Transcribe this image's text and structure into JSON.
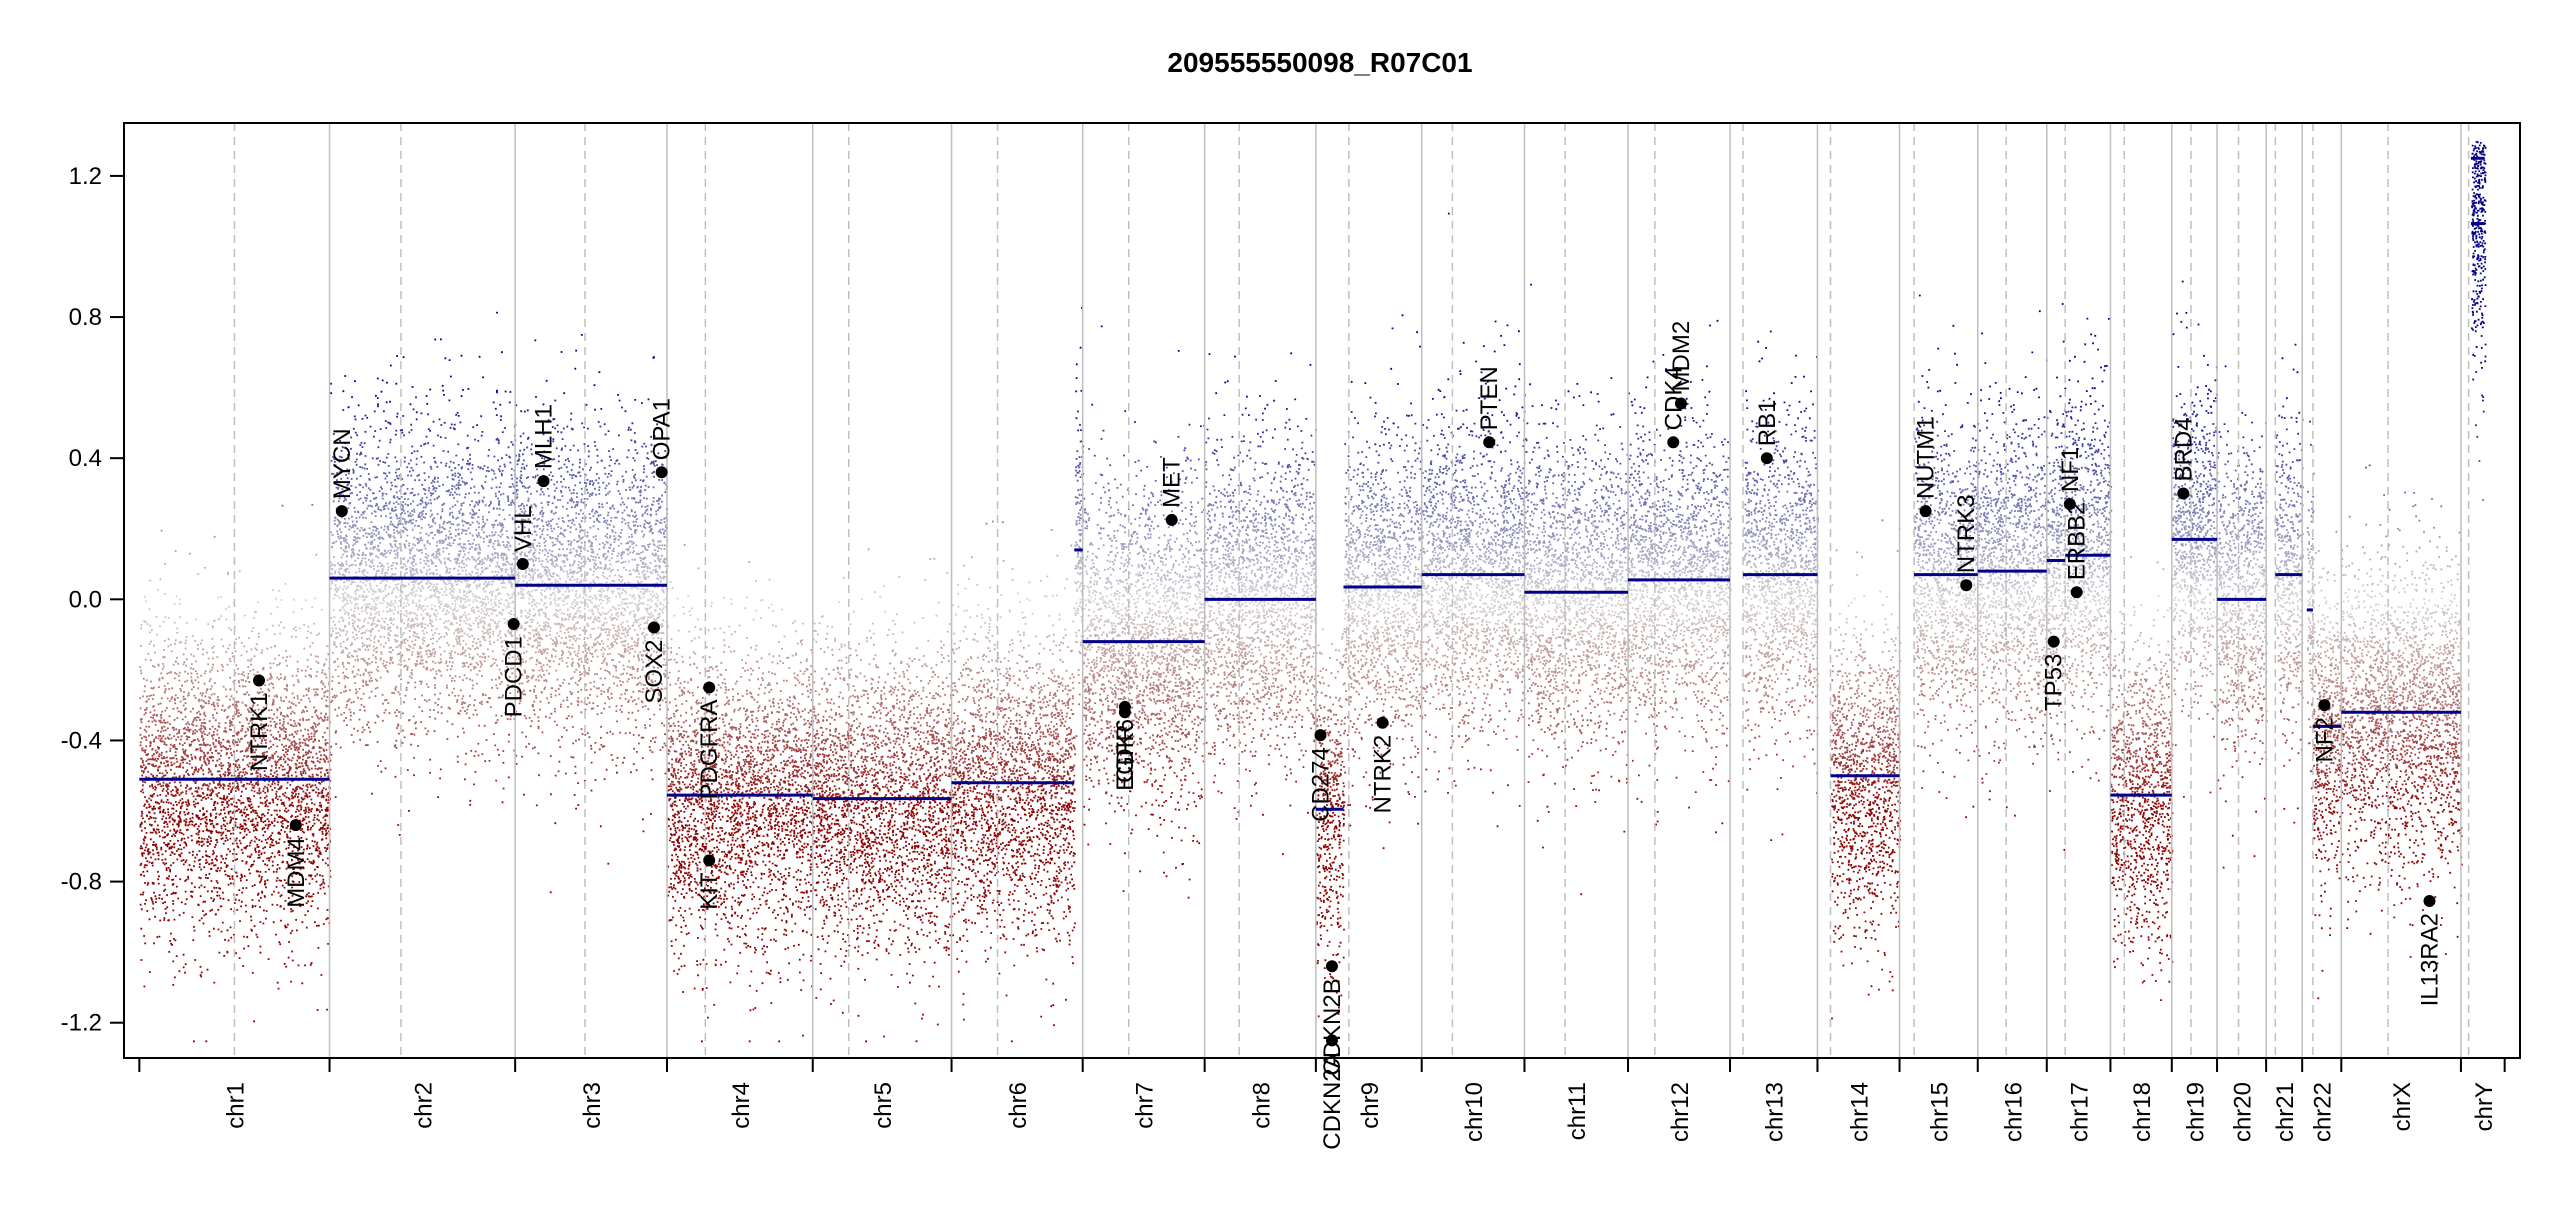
{
  "chart_data": {
    "type": "scatter",
    "title": "209555550098_R07C01",
    "xlabel": "",
    "ylabel": "",
    "ylim": [
      -1.3,
      1.35
    ],
    "yticks": [
      -1.2,
      -0.8,
      -0.4,
      0.0,
      0.4,
      0.8,
      1.2
    ],
    "ytick_labels": [
      "-1.2",
      "-0.8",
      "-0.4",
      "0.0",
      "0.4",
      "0.8",
      "1.2"
    ],
    "grid": false,
    "colors": {
      "gain": "#00008B",
      "loss": "#8B0000",
      "neutral": "#D3D3D3",
      "segment": "#00008B",
      "gene": "#000000",
      "boundary": "#BEBEBE"
    },
    "chromosomes": [
      {
        "name": "chr1",
        "start": 0,
        "end": 248,
        "centromere": 124
      },
      {
        "name": "chr2",
        "start": 248,
        "end": 490,
        "centromere": 341
      },
      {
        "name": "chr3",
        "start": 490,
        "end": 688,
        "centromere": 581
      },
      {
        "name": "chr4",
        "start": 688,
        "end": 878,
        "centromere": 738
      },
      {
        "name": "chr5",
        "start": 878,
        "end": 1059,
        "centromere": 925
      },
      {
        "name": "chr6",
        "start": 1059,
        "end": 1230,
        "centromere": 1119
      },
      {
        "name": "chr7",
        "start": 1230,
        "end": 1389,
        "centromere": 1290
      },
      {
        "name": "chr8",
        "start": 1389,
        "end": 1534,
        "centromere": 1434
      },
      {
        "name": "chr9",
        "start": 1534,
        "end": 1672,
        "centromere": 1577
      },
      {
        "name": "chr10",
        "start": 1672,
        "end": 1806,
        "centromere": 1712
      },
      {
        "name": "chr11",
        "start": 1806,
        "end": 1941,
        "centromere": 1859
      },
      {
        "name": "chr12",
        "start": 1941,
        "end": 2074,
        "centromere": 1976
      },
      {
        "name": "chr13",
        "start": 2074,
        "end": 2188,
        "centromere": 2091
      },
      {
        "name": "chr14",
        "start": 2188,
        "end": 2295,
        "centromere": 2205
      },
      {
        "name": "chr15",
        "start": 2295,
        "end": 2397,
        "centromere": 2314
      },
      {
        "name": "chr16",
        "start": 2397,
        "end": 2487,
        "centromere": 2434
      },
      {
        "name": "chr17",
        "start": 2487,
        "end": 2570,
        "centromere": 2511
      },
      {
        "name": "chr18",
        "start": 2570,
        "end": 2650,
        "centromere": 2588
      },
      {
        "name": "chr19",
        "start": 2650,
        "end": 2709,
        "centromere": 2675
      },
      {
        "name": "chr20",
        "start": 2709,
        "end": 2773,
        "centromere": 2737
      },
      {
        "name": "chr21",
        "start": 2773,
        "end": 2820,
        "centromere": 2785
      },
      {
        "name": "chr22",
        "start": 2820,
        "end": 2871,
        "centromere": 2834
      },
      {
        "name": "chrX",
        "start": 2871,
        "end": 3027,
        "centromere": 2932
      },
      {
        "name": "chrY",
        "start": 3027,
        "end": 3084,
        "centromere": 3037
      }
    ],
    "segments": [
      {
        "chrom": "chr1",
        "start": 0,
        "end": 248,
        "value": -0.51
      },
      {
        "chrom": "chr2",
        "start": 248,
        "end": 490,
        "value": 0.06
      },
      {
        "chrom": "chr3",
        "start": 490,
        "end": 688,
        "value": 0.04
      },
      {
        "chrom": "chr4",
        "start": 688,
        "end": 878,
        "value": -0.555
      },
      {
        "chrom": "chr5",
        "start": 878,
        "end": 1059,
        "value": -0.565
      },
      {
        "chrom": "chr6",
        "start": 1059,
        "end": 1219,
        "value": -0.52
      },
      {
        "chrom": "chr6",
        "start": 1219,
        "end": 1230,
        "value": 0.14
      },
      {
        "chrom": "chr7",
        "start": 1230,
        "end": 1389,
        "value": -0.12
      },
      {
        "chrom": "chr8",
        "start": 1389,
        "end": 1534,
        "value": 0.0
      },
      {
        "chrom": "chr9",
        "start": 1534,
        "end": 1570,
        "value": -0.595
      },
      {
        "chrom": "chr9",
        "start": 1570,
        "end": 1672,
        "value": 0.035
      },
      {
        "chrom": "chr10",
        "start": 1672,
        "end": 1806,
        "value": 0.07
      },
      {
        "chrom": "chr11",
        "start": 1806,
        "end": 1941,
        "value": 0.02
      },
      {
        "chrom": "chr12",
        "start": 1941,
        "end": 2074,
        "value": 0.055
      },
      {
        "chrom": "chr13",
        "start": 2091,
        "end": 2188,
        "value": 0.07
      },
      {
        "chrom": "chr14",
        "start": 2205,
        "end": 2295,
        "value": -0.5
      },
      {
        "chrom": "chr15",
        "start": 2314,
        "end": 2397,
        "value": 0.07
      },
      {
        "chrom": "chr16",
        "start": 2397,
        "end": 2487,
        "value": 0.08
      },
      {
        "chrom": "chr17",
        "start": 2487,
        "end": 2511,
        "value": 0.11
      },
      {
        "chrom": "chr17",
        "start": 2511,
        "end": 2570,
        "value": 0.125
      },
      {
        "chrom": "chr18",
        "start": 2570,
        "end": 2650,
        "value": -0.555
      },
      {
        "chrom": "chr19",
        "start": 2650,
        "end": 2709,
        "value": 0.17
      },
      {
        "chrom": "chr20",
        "start": 2709,
        "end": 2773,
        "value": 0.0
      },
      {
        "chrom": "chr21",
        "start": 2785,
        "end": 2820,
        "value": 0.07
      },
      {
        "chrom": "chr22",
        "start": 2826,
        "end": 2834,
        "value": -0.03
      },
      {
        "chrom": "chr22",
        "start": 2834,
        "end": 2871,
        "value": -0.36
      },
      {
        "chrom": "chrX",
        "start": 2871,
        "end": 3027,
        "value": -0.32
      },
      {
        "chrom": "chrY",
        "start": 3040,
        "end": 3058,
        "value": 1.25
      },
      {
        "chrom": "chrY",
        "start": 3040,
        "end": 3058,
        "value": 1.065
      }
    ],
    "genes": [
      {
        "name": "NTRK1",
        "pos": 156,
        "value": -0.23
      },
      {
        "name": "MDM4",
        "pos": 204,
        "value": -0.64
      },
      {
        "name": "MYCN",
        "pos": 264,
        "value": 0.25
      },
      {
        "name": "PDCD1",
        "pos": 488,
        "value": -0.07
      },
      {
        "name": "VHL",
        "pos": 500,
        "value": 0.1
      },
      {
        "name": "MLH1",
        "pos": 527,
        "value": 0.335
      },
      {
        "name": "SOX2",
        "pos": 671,
        "value": -0.08
      },
      {
        "name": "OPA1",
        "pos": 681,
        "value": 0.36
      },
      {
        "name": "PDGFRA",
        "pos": 743,
        "value": -0.25
      },
      {
        "name": "KIT",
        "pos": 743,
        "value": -0.74
      },
      {
        "name": "EGFR",
        "pos": 1285,
        "value": -0.32
      },
      {
        "name": "CDK6",
        "pos": 1285,
        "value": -0.305
      },
      {
        "name": "MET",
        "pos": 1346,
        "value": 0.225
      },
      {
        "name": "CD274",
        "pos": 1540,
        "value": -0.385
      },
      {
        "name": "CDKN2A",
        "pos": 1555,
        "value": -1.25
      },
      {
        "name": "CDKN2B",
        "pos": 1555,
        "value": -1.04
      },
      {
        "name": "NTRK2",
        "pos": 1621,
        "value": -0.35
      },
      {
        "name": "PTEN",
        "pos": 1760,
        "value": 0.445
      },
      {
        "name": "CDK4",
        "pos": 2000,
        "value": 0.445
      },
      {
        "name": "MDM2",
        "pos": 2010,
        "value": 0.555
      },
      {
        "name": "RB1",
        "pos": 2122,
        "value": 0.4
      },
      {
        "name": "NUTM1",
        "pos": 2329,
        "value": 0.25
      },
      {
        "name": "NTRK3",
        "pos": 2382,
        "value": 0.04
      },
      {
        "name": "TP53",
        "pos": 2496,
        "value": -0.12
      },
      {
        "name": "ERBB2",
        "pos": 2526,
        "value": 0.02
      },
      {
        "name": "NF1",
        "pos": 2517,
        "value": 0.27
      },
      {
        "name": "BRD4",
        "pos": 2665,
        "value": 0.3
      },
      {
        "name": "NF2",
        "pos": 2849,
        "value": -0.3
      },
      {
        "name": "IL13RA2",
        "pos": 2986,
        "value": -0.855
      }
    ],
    "xlim": [
      -20,
      3104
    ]
  }
}
